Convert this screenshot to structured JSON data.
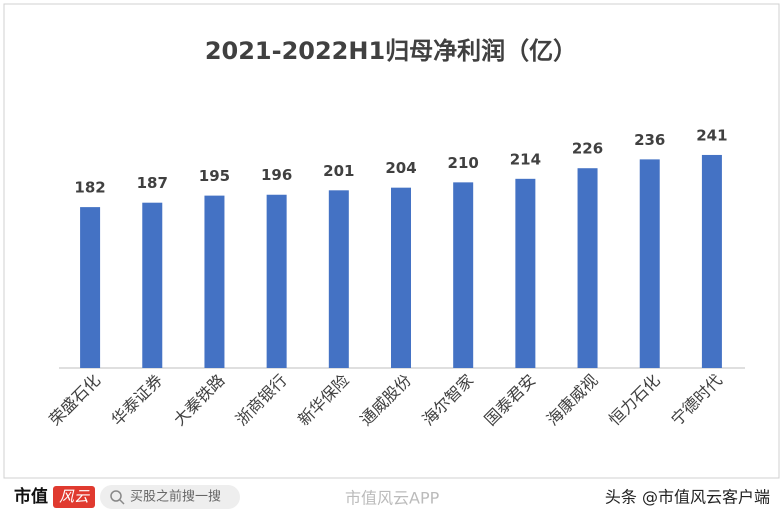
{
  "chart_data": {
    "type": "bar",
    "title": "2021-2022H1归母净利润（亿）",
    "categories": [
      "荣盛石化",
      "华泰证券",
      "大秦铁路",
      "浙商银行",
      "新华保险",
      "通威股份",
      "海尔智家",
      "国泰君安",
      "海康威视",
      "恒力石化",
      "宁德时代"
    ],
    "values": [
      182,
      187,
      195,
      196,
      201,
      204,
      210,
      214,
      226,
      236,
      241
    ],
    "color": "#4472c4",
    "ylim": [
      0,
      250
    ]
  },
  "footer": {
    "logo_text": "市值",
    "logo_mark": "风云",
    "search": "买股之前搜一搜",
    "watermark": "市值风云APP",
    "credit": "头条 @市值风云客户端"
  }
}
